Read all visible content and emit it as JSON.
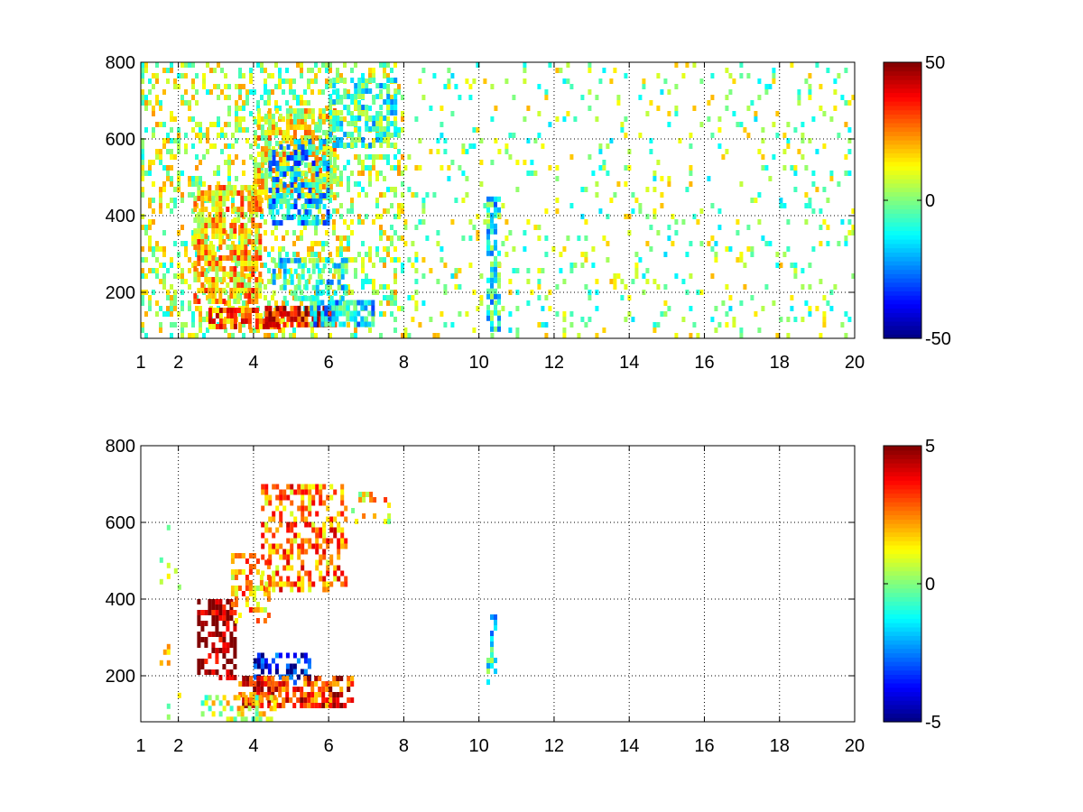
{
  "chart_data": [
    {
      "type": "heatmap",
      "title": "",
      "xlabel": "",
      "ylabel": "",
      "xlim": [
        1,
        20
      ],
      "ylim": [
        80,
        800
      ],
      "grid": true,
      "x_ticks": [
        1,
        2,
        4,
        6,
        8,
        10,
        12,
        14,
        16,
        18,
        20
      ],
      "y_ticks": [
        200,
        400,
        600,
        800
      ],
      "colormap": "jet",
      "clim": [
        -50,
        50
      ],
      "colorbar_ticks": [
        -50,
        0,
        50
      ],
      "colorbar_position": "right",
      "regions": [
        {
          "x": [
            1.0,
            8.0
          ],
          "y": [
            80,
            800
          ],
          "value": 5,
          "density": 0.32
        },
        {
          "x": [
            8.0,
            20.0
          ],
          "y": [
            80,
            800
          ],
          "value": 2,
          "density": 0.1
        },
        {
          "x": [
            2.4,
            4.2
          ],
          "y": [
            180,
            480
          ],
          "value": 18,
          "density": 0.75
        },
        {
          "x": [
            4.0,
            6.2
          ],
          "y": [
            450,
            680
          ],
          "value": 12,
          "density": 0.65
        },
        {
          "x": [
            4.4,
            6.0
          ],
          "y": [
            380,
            600
          ],
          "value": -18,
          "density": 0.55
        },
        {
          "x": [
            2.8,
            4.8
          ],
          "y": [
            110,
            160
          ],
          "value": 28,
          "density": 0.85
        },
        {
          "x": [
            4.3,
            6.2
          ],
          "y": [
            110,
            165
          ],
          "value": 40,
          "density": 0.9
        },
        {
          "x": [
            5.5,
            7.2
          ],
          "y": [
            120,
            180
          ],
          "value": -15,
          "density": 0.7
        },
        {
          "x": [
            4.5,
            6.5
          ],
          "y": [
            190,
            290
          ],
          "value": -10,
          "density": 0.55
        },
        {
          "x": [
            6.0,
            7.8
          ],
          "y": [
            580,
            760
          ],
          "value": -8,
          "density": 0.55
        },
        {
          "x": [
            10.2,
            10.5
          ],
          "y": [
            100,
            450
          ],
          "value": -12,
          "density": 0.7
        }
      ]
    },
    {
      "type": "heatmap",
      "title": "",
      "xlabel": "",
      "ylabel": "",
      "xlim": [
        1,
        20
      ],
      "ylim": [
        80,
        800
      ],
      "grid": true,
      "x_ticks": [
        1,
        2,
        4,
        6,
        8,
        10,
        12,
        14,
        16,
        18,
        20
      ],
      "y_ticks": [
        200,
        400,
        600,
        800
      ],
      "colormap": "jet",
      "clim": [
        -5,
        5
      ],
      "colorbar_ticks": [
        -5,
        0,
        5
      ],
      "colorbar_position": "right",
      "regions": [
        {
          "x": [
            2.5,
            3.5
          ],
          "y": [
            200,
            400
          ],
          "value": 5,
          "density": 0.55
        },
        {
          "x": [
            3.4,
            4.4
          ],
          "y": [
            350,
            520
          ],
          "value": 2,
          "density": 0.45
        },
        {
          "x": [
            4.2,
            6.5
          ],
          "y": [
            420,
            700
          ],
          "value": 2.5,
          "density": 0.45
        },
        {
          "x": [
            4.0,
            5.5
          ],
          "y": [
            180,
            260
          ],
          "value": -4,
          "density": 0.5
        },
        {
          "x": [
            3.6,
            6.6
          ],
          "y": [
            120,
            200
          ],
          "value": 3.5,
          "density": 0.65
        },
        {
          "x": [
            2.6,
            4.6
          ],
          "y": [
            90,
            150
          ],
          "value": 0.8,
          "density": 0.45
        },
        {
          "x": [
            1.5,
            2.0
          ],
          "y": [
            90,
            650
          ],
          "value": 1,
          "density": 0.08
        },
        {
          "x": [
            10.2,
            10.4
          ],
          "y": [
            180,
            360
          ],
          "value": -1.2,
          "density": 0.4
        },
        {
          "x": [
            6.6,
            7.6
          ],
          "y": [
            600,
            680
          ],
          "value": 1.5,
          "density": 0.3
        }
      ]
    }
  ]
}
